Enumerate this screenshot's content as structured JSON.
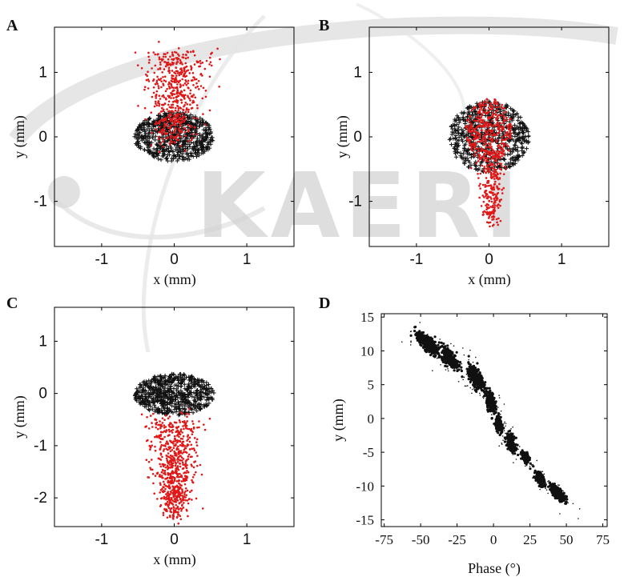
{
  "watermark": {
    "text": "KAERI"
  },
  "colors": {
    "initial": "#111111",
    "final": "#e01818",
    "frame": "#000000"
  },
  "chart_data": [
    {
      "panel": "A",
      "type": "scatter",
      "xlabel": "x (mm)",
      "ylabel": "y (mm)",
      "xlim": [
        -1.65,
        1.65
      ],
      "ylim": [
        -1.7,
        1.7
      ],
      "xticks": [
        -1,
        0,
        1
      ],
      "yticks": [
        -1,
        0,
        1
      ],
      "xtick_labels": [
        "-1",
        "0",
        "1"
      ],
      "ytick_labels": [
        "-1",
        "0",
        "1"
      ],
      "grid": false,
      "series": [
        {
          "color": "black",
          "marker": "+",
          "distribution": "disc",
          "center": [
            0,
            0
          ],
          "radius": [
            0.55,
            0.38
          ],
          "count": 620
        },
        {
          "color": "red",
          "marker": ".",
          "distribution": "tail",
          "start": [
            0,
            -0.1
          ],
          "end": [
            0.05,
            1.3
          ],
          "width_start": 0.28,
          "width_end": 0.5,
          "count": 560
        }
      ]
    },
    {
      "panel": "B",
      "type": "scatter",
      "xlabel": "x (mm)",
      "ylabel": "y (mm)",
      "xlim": [
        -1.65,
        1.65
      ],
      "ylim": [
        -1.7,
        1.7
      ],
      "xticks": [
        -1,
        0,
        1
      ],
      "yticks": [
        -1,
        0,
        1
      ],
      "xtick_labels": [
        "-1",
        "0",
        "1"
      ],
      "ytick_labels": [
        "-1",
        "0",
        "1"
      ],
      "grid": false,
      "series": [
        {
          "color": "black",
          "marker": "+",
          "distribution": "disc",
          "center": [
            0,
            0
          ],
          "radius": [
            0.55,
            0.55
          ],
          "count": 620
        },
        {
          "color": "red",
          "marker": ".",
          "distribution": "disc",
          "center": [
            0,
            0.1
          ],
          "radius": [
            0.32,
            0.5
          ],
          "count": 380
        },
        {
          "color": "red",
          "marker": ".",
          "distribution": "tail",
          "start": [
            0,
            -0.1
          ],
          "end": [
            0.05,
            -1.3
          ],
          "width_start": 0.25,
          "width_end": 0.12,
          "count": 260
        }
      ]
    },
    {
      "panel": "C",
      "type": "scatter",
      "xlabel": "x (mm)",
      "ylabel": "y (mm)",
      "xlim": [
        -1.65,
        1.65
      ],
      "ylim": [
        -2.55,
        1.65
      ],
      "xticks": [
        -1,
        0,
        1
      ],
      "yticks": [
        -2,
        -1,
        0,
        1
      ],
      "xtick_labels": [
        "-1",
        "0",
        "1"
      ],
      "ytick_labels": [
        "-2",
        "-1",
        "0",
        "1"
      ],
      "grid": false,
      "series": [
        {
          "color": "black",
          "marker": "+",
          "distribution": "disc",
          "center": [
            0,
            -0.02
          ],
          "radius": [
            0.55,
            0.4
          ],
          "count": 620
        },
        {
          "color": "red",
          "marker": ".",
          "distribution": "tail",
          "start": [
            0,
            -0.45
          ],
          "end": [
            0,
            -2.3
          ],
          "width_start": 0.45,
          "width_end": 0.18,
          "count": 720
        }
      ]
    },
    {
      "panel": "D",
      "type": "scatter",
      "xlabel": "Phase (°)",
      "ylabel": "y (mm)",
      "xlim": [
        -77,
        78
      ],
      "ylim": [
        -16,
        15.5
      ],
      "xticks": [
        -75,
        -50,
        -25,
        0,
        25,
        50,
        75
      ],
      "yticks": [
        15,
        10,
        5,
        0,
        -5,
        -10,
        -15
      ],
      "xtick_labels": [
        "-75",
        "-50",
        "-25",
        "0",
        "25",
        "50",
        "75"
      ],
      "ytick_labels": [
        "15",
        "10",
        "5",
        "0",
        "-5",
        "-10",
        "-15"
      ],
      "grid": false,
      "series": [
        {
          "color": "black",
          "marker": "dot",
          "clusters": [
            {
              "phase": -45,
              "y": 11,
              "spread": [
                7,
                1.1
              ],
              "count": 420
            },
            {
              "phase": -30,
              "y": 9,
              "spread": [
                6,
                1.2
              ],
              "count": 260
            },
            {
              "phase": -12,
              "y": 6,
              "spread": [
                5,
                1.3
              ],
              "count": 420
            },
            {
              "phase": -2,
              "y": 2.5,
              "spread": [
                3,
                1.5
              ],
              "count": 220
            },
            {
              "phase": 4,
              "y": -1,
              "spread": [
                2.5,
                1
              ],
              "count": 160
            },
            {
              "phase": 12,
              "y": -3.5,
              "spread": [
                3,
                1.2
              ],
              "count": 200
            },
            {
              "phase": 22,
              "y": -5.8,
              "spread": [
                2.5,
                0.7
              ],
              "count": 180
            },
            {
              "phase": 32,
              "y": -9,
              "spread": [
                3,
                0.8
              ],
              "count": 220
            },
            {
              "phase": 44,
              "y": -11,
              "spread": [
                5,
                0.8
              ],
              "count": 300
            }
          ]
        }
      ]
    }
  ]
}
